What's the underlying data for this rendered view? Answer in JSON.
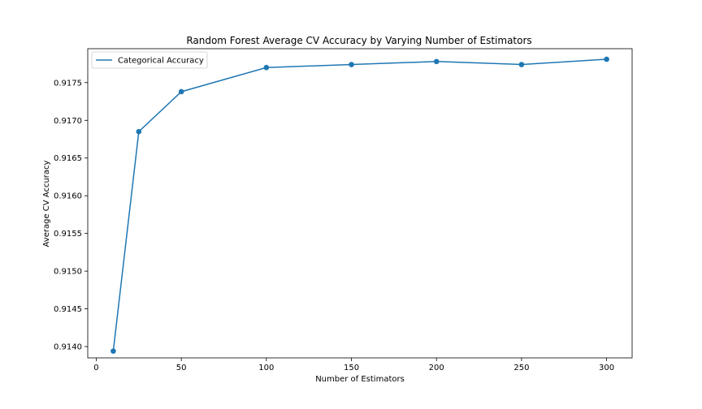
{
  "chart_data": {
    "type": "line",
    "title": "Random Forest Average CV Accuracy by Varying Number of Estimators",
    "xlabel": "Number of Estimators",
    "ylabel": "Average CV Accuracy",
    "xlim": [
      -5,
      315
    ],
    "ylim": [
      0.91385,
      0.91795
    ],
    "xticks": [
      0,
      50,
      100,
      150,
      200,
      250,
      300
    ],
    "yticks": [
      0.914,
      0.9145,
      0.915,
      0.9155,
      0.916,
      0.9165,
      0.917,
      0.9175
    ],
    "ytick_labels": [
      "0.9140",
      "0.9145",
      "0.9150",
      "0.9155",
      "0.9160",
      "0.9165",
      "0.9170",
      "0.9175"
    ],
    "xtick_labels": [
      "0",
      "50",
      "100",
      "150",
      "200",
      "250",
      "300"
    ],
    "grid": false,
    "legend_position": "top-left",
    "series": [
      {
        "name": "Categorical Accuracy",
        "color": "#1f77b4",
        "x": [
          10,
          25,
          50,
          100,
          150,
          200,
          250,
          300
        ],
        "y": [
          0.91394,
          0.91685,
          0.91738,
          0.9177,
          0.91774,
          0.91778,
          0.91774,
          0.91781
        ]
      }
    ]
  }
}
